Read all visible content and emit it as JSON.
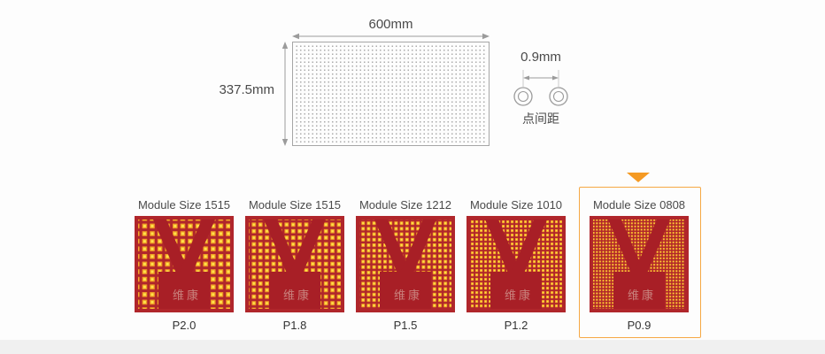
{
  "diagram": {
    "width_label": "600mm",
    "height_label": "337.5mm",
    "pitch_value_label": "0.9mm",
    "pitch_caption": "点间距"
  },
  "modules": {
    "brand_watermark": "维康",
    "items": [
      {
        "title": "Module Size 1515",
        "pitch_label": "P2.0",
        "highlighted": false,
        "dots": {
          "tile": 8.6,
          "ring": 5.6,
          "core": 3.0,
          "core_offset": 1.3
        }
      },
      {
        "title": "Module Size 1515",
        "pitch_label": "P1.8",
        "highlighted": false,
        "dots": {
          "tile": 7.4,
          "ring": 4.8,
          "core": 2.6,
          "core_offset": 1.1
        }
      },
      {
        "title": "Module Size 1212",
        "pitch_label": "P1.5",
        "highlighted": false,
        "dots": {
          "tile": 6.2,
          "ring": 4.0,
          "core": 2.2,
          "core_offset": 0.9
        }
      },
      {
        "title": "Module Size 1010",
        "pitch_label": "P1.2",
        "highlighted": false,
        "dots": {
          "tile": 5.0,
          "ring": 3.2,
          "core": 1.6,
          "core_offset": 0.8
        }
      },
      {
        "title": "Module Size 0808",
        "pitch_label": "P0.9",
        "highlighted": true,
        "dots": {
          "tile": 3.6,
          "ring": 2.2,
          "core": 1.1,
          "core_offset": 0.55
        }
      }
    ]
  },
  "colors": {
    "page_bg": "#fdfdfd",
    "footer_strip": "#f0f0f0",
    "text_dark": "#4a4a4a",
    "line_gray": "#9b9b9b",
    "panel_dot": "#ababab",
    "accent_border": "#f6a844",
    "accent_triangle": "#f59a23",
    "module_red": "#b0262b",
    "module_red_dark": "#a81f26",
    "dot_ring": "#ef9b23",
    "dot_core": "#ffe14a",
    "watermark": "#c9827d"
  }
}
